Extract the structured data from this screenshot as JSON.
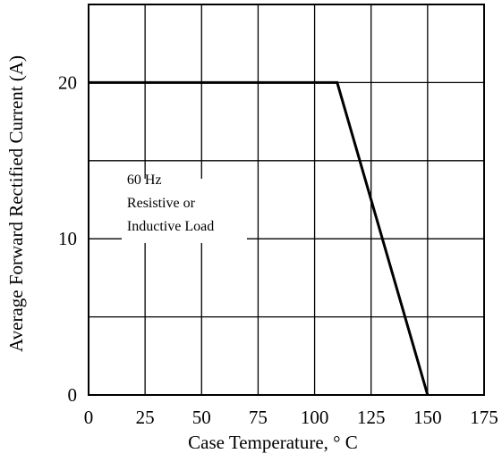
{
  "chart_data": {
    "type": "line",
    "title": "",
    "xlabel": "Case Temperature, ° C",
    "ylabel": "Average Forward Rectified Current (A)",
    "xlim": [
      0,
      175
    ],
    "ylim": [
      0,
      25
    ],
    "x_ticks": [
      0,
      25,
      50,
      75,
      100,
      125,
      150,
      175
    ],
    "y_ticks": [
      0,
      10,
      20
    ],
    "grid": true,
    "legend": "none",
    "series": [
      {
        "x": [
          0,
          110,
          150
        ],
        "y": [
          20,
          20,
          0
        ]
      }
    ],
    "annotation": {
      "lines": [
        "60 Hz",
        "Resistive or",
        "Inductive Load"
      ],
      "x": 17,
      "y": 13.5
    },
    "colors": {
      "line": "#000000",
      "grid": "#000000",
      "background": "#ffffff"
    }
  }
}
